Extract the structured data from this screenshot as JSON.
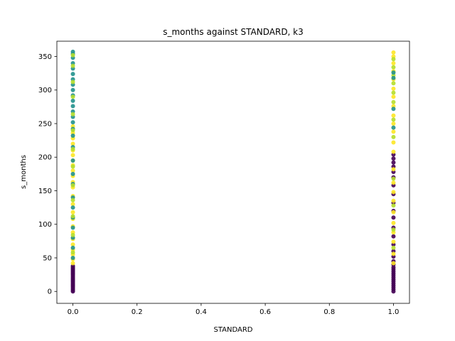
{
  "chart_data": {
    "type": "scatter",
    "title": "s_months against STANDARD, k3",
    "xlabel": "STANDARD",
    "ylabel": "s_months",
    "xlim": [
      -0.05,
      1.05
    ],
    "ylim": [
      -17.75,
      372.75
    ],
    "xticks": [
      0.0,
      0.2,
      0.4,
      0.6,
      0.8,
      1.0
    ],
    "xtick_labels": [
      "0.0",
      "0.2",
      "0.4",
      "0.6",
      "0.8",
      "1.0"
    ],
    "yticks": [
      0,
      50,
      100,
      150,
      200,
      250,
      300,
      350
    ],
    "ytick_labels": [
      "0",
      "50",
      "100",
      "150",
      "200",
      "250",
      "300",
      "350"
    ],
    "grid": false,
    "legend": "none",
    "colormap": "viridis",
    "cluster_colors": {
      "k0": "#440154",
      "k1": "#21918c",
      "k2": "#fde725",
      "k3": "#b5de2b"
    },
    "groups": [
      {
        "x": 0,
        "cluster_color": "#440154",
        "y_values": [
          0,
          2,
          4,
          6,
          8,
          10,
          12,
          14,
          16,
          18,
          20,
          22,
          24,
          26,
          28,
          30,
          32,
          34,
          36,
          38
        ]
      },
      {
        "x": 0,
        "cluster_color": "#fde725",
        "y_values": [
          42,
          48,
          55,
          62,
          70,
          78,
          88,
          97,
          108,
          118,
          130,
          142,
          155,
          163,
          172,
          180,
          188,
          195,
          203,
          210,
          220,
          228,
          236,
          246
        ]
      },
      {
        "x": 0,
        "cluster_color": "#21918c",
        "y_values": [
          50,
          65,
          80,
          95,
          110,
          125,
          140,
          160,
          175,
          195,
          215,
          232,
          242,
          252,
          260,
          268,
          276,
          284,
          292,
          300,
          308,
          316,
          324,
          332,
          340,
          348,
          354,
          357
        ]
      },
      {
        "x": 0,
        "cluster_color": "#b5de2b",
        "y_values": [
          58,
          84,
          112,
          136,
          158,
          186,
          212,
          240,
          264,
          290,
          312,
          336,
          352
        ]
      },
      {
        "x": 1,
        "cluster_color": "#440154",
        "y_values": [
          0,
          3,
          6,
          9,
          12,
          15,
          18,
          21,
          24,
          27,
          30,
          33,
          36,
          40,
          45,
          52,
          60,
          70,
          82,
          95,
          110,
          120,
          132,
          145,
          158,
          170,
          178,
          186,
          192,
          198,
          204
        ]
      },
      {
        "x": 1,
        "cluster_color": "#fde725",
        "y_values": [
          42,
          56,
          74,
          88,
          102,
          118,
          135,
          148,
          162,
          182,
          208,
          222,
          238,
          250,
          262,
          276,
          290,
          302,
          316,
          328,
          340,
          350,
          356
        ]
      },
      {
        "x": 1,
        "cluster_color": "#b5de2b",
        "y_values": [
          65,
          92,
          128,
          168,
          230,
          256,
          282,
          296,
          310,
          322,
          334,
          346
        ]
      },
      {
        "x": 1,
        "cluster_color": "#21918c",
        "y_values": [
          244,
          272,
          318,
          326
        ]
      }
    ]
  }
}
